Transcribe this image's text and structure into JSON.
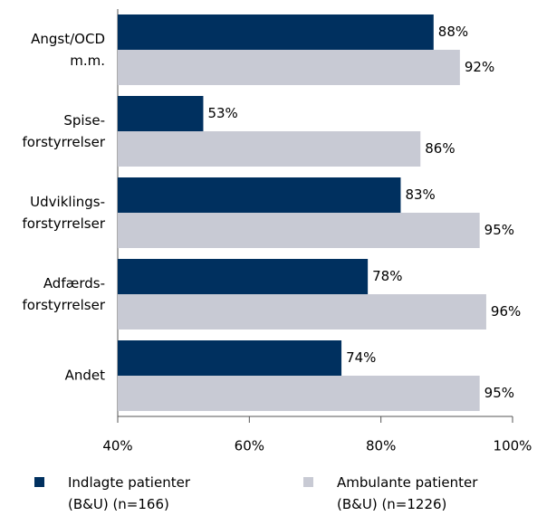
{
  "chart_data": {
    "type": "bar",
    "orientation": "horizontal",
    "categories": [
      "Angst/OCD\nm.m.",
      "Spise-\nforstyrrelser",
      "Udviklings-\nforstyrrelser",
      "Adfærds-\nforstyrrelser",
      "Andet"
    ],
    "series": [
      {
        "name": "Indlagte patienter\n(B&U) (n=166)",
        "color": "#00305f",
        "values": [
          88,
          53,
          83,
          78,
          74
        ],
        "value_labels": [
          "88%",
          "53%",
          "83%",
          "78%",
          "74%"
        ]
      },
      {
        "name": "Ambulante patienter\n(B&U) (n=1226)",
        "color": "#c8cad4",
        "values": [
          92,
          86,
          95,
          96,
          95
        ],
        "value_labels": [
          "92%",
          "86%",
          "95%",
          "96%",
          "95%"
        ]
      }
    ],
    "xlim": [
      40,
      100
    ],
    "xticks": [
      {
        "value": 40,
        "label": "40%"
      },
      {
        "value": 60,
        "label": "60%"
      },
      {
        "value": 80,
        "label": "80%"
      },
      {
        "value": 100,
        "label": "100%"
      }
    ],
    "legend": "bottom"
  }
}
